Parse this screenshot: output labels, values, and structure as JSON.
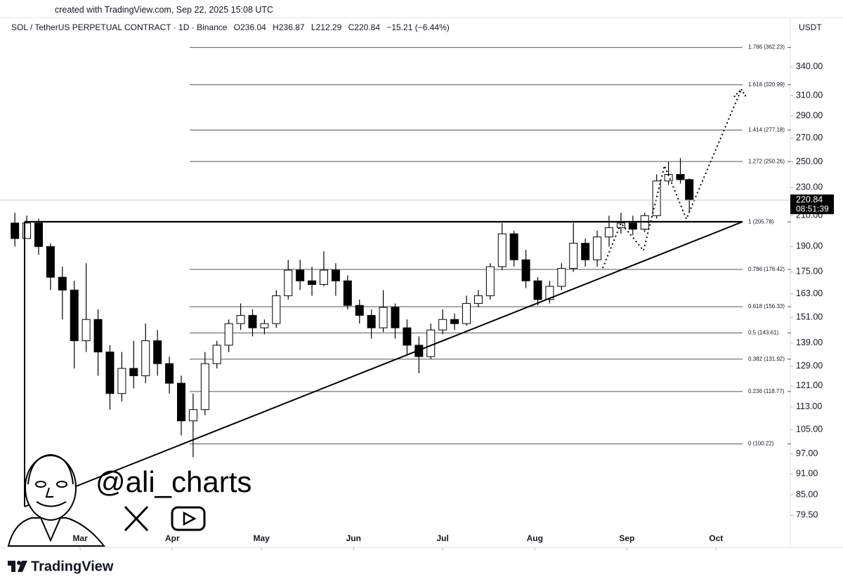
{
  "header": {
    "created": "created with TradingView.com, Sep 22, 2025 15:08 UTC",
    "symbol": "SOL / TetherUS PERPETUAL CONTRACT · 1D · Binance",
    "ohlc_labels": [
      "O",
      "H",
      "L",
      "C"
    ],
    "change": "−15.21 (−6.44%)",
    "currency": "USDT"
  },
  "watermark": "@ali_charts",
  "brand": "TradingView",
  "chart_data": {
    "type": "candlestick",
    "x": [
      -22,
      -18,
      -14,
      -10,
      -6,
      -2,
      2,
      6,
      10,
      14,
      18,
      22,
      26,
      30,
      34,
      38,
      42,
      46,
      50,
      54,
      58,
      62,
      66,
      70,
      74,
      78,
      82,
      86,
      90,
      94,
      98,
      102,
      106,
      110,
      114,
      118,
      122,
      126,
      130,
      134,
      138,
      142,
      146,
      150,
      154,
      158,
      162,
      166,
      170,
      174,
      178,
      182,
      186,
      190,
      194,
      198,
      202,
      205
    ],
    "open": [
      205,
      195,
      205,
      190,
      172,
      165,
      140,
      150,
      135,
      118,
      128,
      125,
      140,
      130,
      122,
      108,
      112,
      130,
      138,
      148,
      152,
      146,
      148,
      162,
      176,
      170,
      168,
      176,
      170,
      157,
      152,
      146,
      156,
      146,
      138,
      133,
      145,
      150,
      148,
      158,
      162,
      178,
      198,
      182,
      170,
      160,
      167,
      177,
      192,
      182,
      196,
      202,
      205,
      201,
      210,
      235,
      240,
      236.04
    ],
    "high": [
      212,
      210,
      208,
      192,
      178,
      170,
      180,
      155,
      138,
      135,
      140,
      148,
      145,
      133,
      125,
      118,
      135,
      140,
      150,
      158,
      155,
      150,
      165,
      182,
      182,
      178,
      187,
      180,
      173,
      160,
      155,
      165,
      158,
      150,
      142,
      148,
      155,
      153,
      162,
      165,
      180,
      205,
      200,
      188,
      172,
      170,
      180,
      205,
      195,
      200,
      210,
      212,
      210,
      212,
      240,
      250,
      253,
      236.87
    ],
    "low": [
      190,
      198,
      185,
      165,
      150,
      128,
      135,
      125,
      112,
      115,
      120,
      122,
      125,
      118,
      103,
      96,
      110,
      128,
      135,
      145,
      142,
      143,
      146,
      160,
      165,
      162,
      167,
      162,
      155,
      148,
      141,
      144,
      141,
      134,
      126,
      132,
      143,
      145,
      147,
      156,
      160,
      176,
      178,
      166,
      157,
      158,
      165,
      175,
      178,
      178,
      190,
      198,
      197,
      199,
      208,
      232,
      233,
      212.29
    ],
    "close": [
      195,
      205,
      190,
      172,
      165,
      140,
      150,
      135,
      118,
      128,
      125,
      140,
      130,
      122,
      108,
      112,
      130,
      138,
      148,
      152,
      146,
      148,
      162,
      176,
      170,
      168,
      176,
      170,
      157,
      152,
      146,
      156,
      146,
      138,
      133,
      145,
      150,
      148,
      158,
      162,
      178,
      198,
      182,
      170,
      160,
      167,
      177,
      192,
      182,
      196,
      202,
      205,
      201,
      210,
      235,
      240,
      236,
      220.84
    ],
    "up_color": "#ffffff",
    "down_color": "#000000",
    "xlim": [
      -27,
      239
    ],
    "xticks": [
      {
        "value": 0,
        "label": "Mar"
      },
      {
        "value": 31,
        "label": "Apr"
      },
      {
        "value": 61,
        "label": "May"
      },
      {
        "value": 92,
        "label": "Jun"
      },
      {
        "value": 122,
        "label": "Jul"
      },
      {
        "value": 153,
        "label": "Aug"
      },
      {
        "value": 184,
        "label": "Sep"
      },
      {
        "value": 214,
        "label": "Oct"
      }
    ],
    "ylim": [
      75,
      377
    ],
    "log_scale": true,
    "yticks": [
      {
        "value": 340,
        "label": "340.00"
      },
      {
        "value": 310,
        "label": "310.00"
      },
      {
        "value": 290,
        "label": "290.00"
      },
      {
        "value": 270,
        "label": "270.00"
      },
      {
        "value": 250,
        "label": "250.00"
      },
      {
        "value": 230,
        "label": "230.00"
      },
      {
        "value": 210,
        "label": "210.00"
      },
      {
        "value": 190,
        "label": "190.00"
      },
      {
        "value": 175,
        "label": "175.00"
      },
      {
        "value": 163,
        "label": "163.00"
      },
      {
        "value": 151,
        "label": "151.00"
      },
      {
        "value": 139,
        "label": "139.00"
      },
      {
        "value": 129,
        "label": "129.00"
      },
      {
        "value": 121,
        "label": "121.00"
      },
      {
        "value": 113,
        "label": "113.00"
      },
      {
        "value": 105,
        "label": "105.00"
      },
      {
        "value": 97,
        "label": "97.00"
      },
      {
        "value": 91,
        "label": "91.00"
      },
      {
        "value": 85,
        "label": "85.00"
      },
      {
        "value": 79.5,
        "label": "79.50"
      }
    ],
    "fib_levels": [
      {
        "value": 362.23,
        "label": "1.786 (362.23)"
      },
      {
        "value": 320.99,
        "label": "1.618 (320.99)"
      },
      {
        "value": 277.18,
        "label": "1.414 (277.18)"
      },
      {
        "value": 250.26,
        "label": "1.272 (250.26)"
      },
      {
        "value": 205.78,
        "label": "1 (205.78)"
      },
      {
        "value": 176.42,
        "label": "0.786 (176.42)"
      },
      {
        "value": 156.33,
        "label": "0.618 (156.33)"
      },
      {
        "value": 143.61,
        "label": "0.5 (143.61)"
      },
      {
        "value": 131.92,
        "label": "0.382 (131.92)"
      },
      {
        "value": 118.77,
        "label": "0.236 (118.77)"
      },
      {
        "value": 100.22,
        "label": "0 (100.22)"
      }
    ],
    "countdown": "08:51:39"
  }
}
